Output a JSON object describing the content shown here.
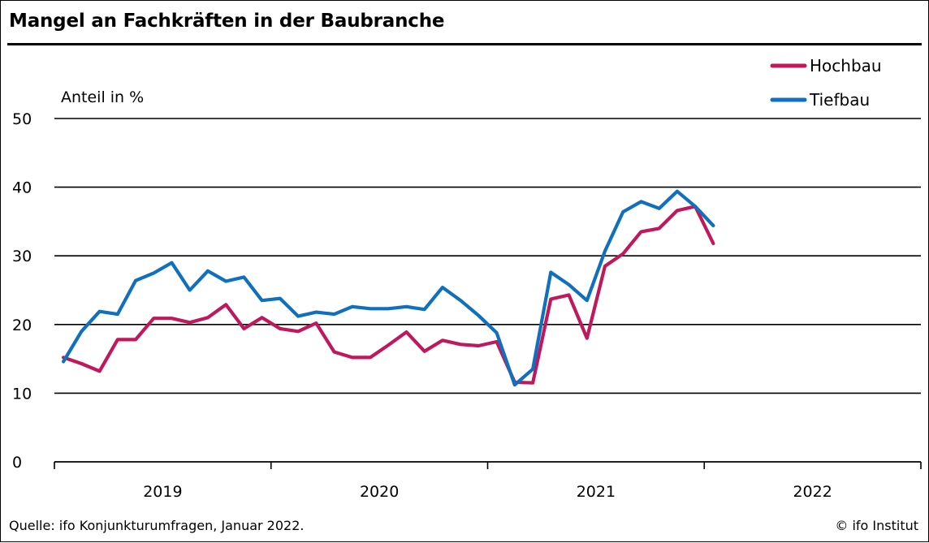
{
  "title": "Mangel an Fachkräften in der Baubranche",
  "footer": {
    "source": "Quelle: ifo Konjunkturumfragen, Januar 2022.",
    "copyright": "© ifo Institut"
  },
  "chart_data": {
    "type": "line",
    "title": "Mangel an Fachkräften in der Baubranche",
    "ylabel": "Anteil in %",
    "xlabel": "",
    "ylim": [
      0,
      50
    ],
    "yticks": [
      0,
      10,
      20,
      30,
      40,
      50
    ],
    "x_range": [
      "2019-01",
      "2022-12"
    ],
    "x_year_labels": [
      "2019",
      "2020",
      "2021",
      "2022"
    ],
    "grid": "horizontal",
    "legend_position": "top-right",
    "x": [
      "2019-01",
      "2019-02",
      "2019-03",
      "2019-04",
      "2019-05",
      "2019-06",
      "2019-07",
      "2019-08",
      "2019-09",
      "2019-10",
      "2019-11",
      "2019-12",
      "2020-01",
      "2020-02",
      "2020-03",
      "2020-04",
      "2020-05",
      "2020-06",
      "2020-07",
      "2020-08",
      "2020-09",
      "2020-10",
      "2020-11",
      "2020-12",
      "2021-01",
      "2021-02",
      "2021-03",
      "2021-04",
      "2021-05",
      "2021-06",
      "2021-07",
      "2021-08",
      "2021-09",
      "2021-10",
      "2021-11",
      "2021-12",
      "2022-01"
    ],
    "series": [
      {
        "name": "Hochbau",
        "color": "#c0185a",
        "values": [
          15.2,
          14.3,
          13.2,
          17.8,
          17.8,
          20.9,
          20.9,
          20.3,
          21.0,
          22.9,
          19.4,
          21.0,
          19.4,
          19.0,
          20.2,
          16.0,
          15.2,
          15.2,
          17.0,
          18.9,
          16.1,
          17.7,
          17.1,
          16.9,
          17.5,
          11.6,
          11.5,
          23.7,
          24.3,
          18.0,
          28.5,
          30.3,
          33.5,
          34.0,
          36.6,
          37.2,
          31.8
        ]
      },
      {
        "name": "Tiefbau",
        "color": "#1070bd",
        "values": [
          14.6,
          19.0,
          21.9,
          21.5,
          26.4,
          27.5,
          29.0,
          25.0,
          27.8,
          26.3,
          26.9,
          23.5,
          23.8,
          21.2,
          21.8,
          21.5,
          22.6,
          22.3,
          22.3,
          22.6,
          22.2,
          25.4,
          23.5,
          21.3,
          18.8,
          11.2,
          13.5,
          27.6,
          25.8,
          23.5,
          30.7,
          36.4,
          37.9,
          36.9,
          39.4,
          37.2,
          34.4
        ]
      }
    ]
  }
}
